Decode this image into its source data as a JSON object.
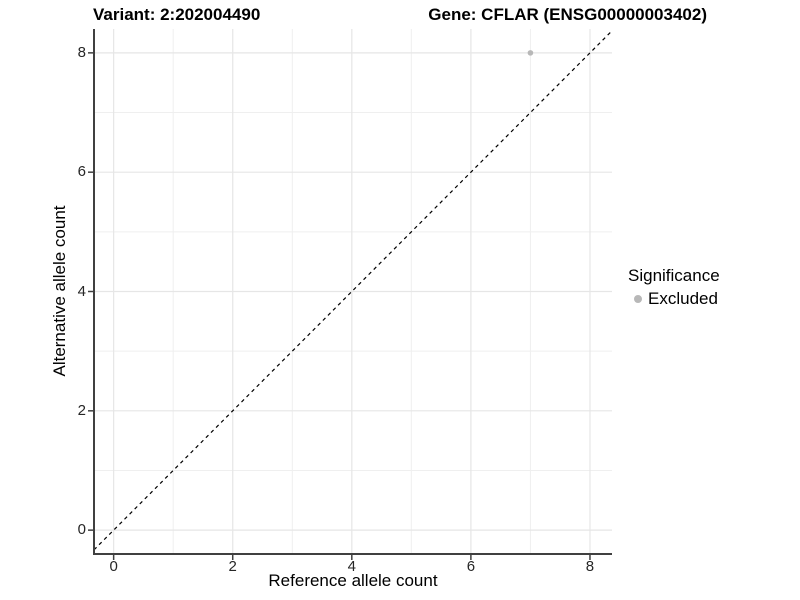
{
  "chart_data": {
    "type": "scatter",
    "title_left": "Variant: 2:202004490",
    "title_right": "Gene: CFLAR (ENSG00000003402)",
    "xlabel": "Reference allele count",
    "ylabel": "Alternative allele count",
    "xlim": [
      -0.33,
      8.37
    ],
    "ylim": [
      -0.4,
      8.4
    ],
    "x_ticks": [
      0,
      2,
      4,
      6,
      8
    ],
    "y_ticks": [
      0,
      2,
      4,
      6,
      8
    ],
    "grid": {
      "major_every": 2,
      "minor_every": 1,
      "major_color": "#e6e6e6",
      "minor_color": "#efefef"
    },
    "reference_line": {
      "type": "identity_y_equals_x",
      "style": "dashed",
      "color": "#000000"
    },
    "series": [
      {
        "name": "Excluded",
        "color": "#b8b8b8",
        "points": [
          {
            "x": 7,
            "y": 8
          }
        ]
      }
    ],
    "legend": {
      "title": "Significance",
      "position": "right",
      "items": [
        {
          "label": "Excluded",
          "color": "#b8b8b8"
        }
      ]
    },
    "axis_color": "#404040"
  }
}
